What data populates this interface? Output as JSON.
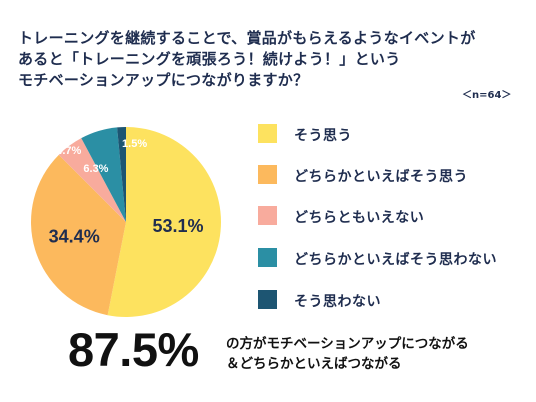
{
  "header": {
    "title_lines": [
      "トレーニングを継続することで、賞品がもらえるようなイベントが",
      "あると「トレーニングを頑張ろう！続けよう！」という",
      "モチベーションアップにつながりますか？"
    ],
    "sample_note": "＜n=64＞"
  },
  "chart_data": {
    "type": "pie",
    "start": "12 o'clock",
    "direction": "clockwise",
    "categories": [
      "そう思う",
      "どちらかといえばそう思う",
      "どちらともいえない",
      "どちらかといえばそう思わない",
      "そう思わない"
    ],
    "values": [
      53.1,
      34.4,
      4.7,
      6.3,
      1.5
    ],
    "value_labels": [
      "53.1%",
      "34.4%",
      "4.7%",
      "6.3%",
      "1.5%"
    ],
    "colors": [
      "#fde25f",
      "#fcb95d",
      "#f8ab9d",
      "#2b8fa4",
      "#1d5572"
    ],
    "legend_position": "right"
  },
  "summary": {
    "value": "87.5%",
    "text_lines": [
      "の方がモチベーションアップにつながる",
      "＆どちらかといえばつながる"
    ]
  }
}
